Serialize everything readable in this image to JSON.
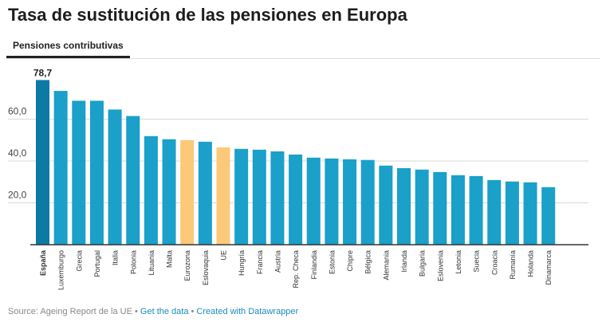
{
  "header": {
    "title": "Tasa de sustitución de las pensiones en Europa",
    "tab": "Pensiones contributivas"
  },
  "footer": {
    "source": "Source: Ageing Report de la UE",
    "sep": " • ",
    "get_data": "Get the data",
    "created": "Created with Datawrapper"
  },
  "colors": {
    "default": "#1aa0c9",
    "highlight_spain": "#0c7aa2",
    "aggregate": "#fcc978"
  },
  "chart_data": {
    "type": "bar",
    "title": "Tasa de sustitución de las pensiones en Europa",
    "categories": [
      "España",
      "Luxemburgo",
      "Grecia",
      "Portugal",
      "Italia",
      "Polonia",
      "Lituania",
      "Malta",
      "Eurozona",
      "Eslovaquia",
      "UE",
      "Hungría",
      "Francia",
      "Austria",
      "Rep. Checa",
      "Finlandia",
      "Estonia",
      "Chipre",
      "Bélgica",
      "Alemania",
      "Irlanda",
      "Bulgaria",
      "Eslovenia",
      "Letonia",
      "Suecia",
      "Croacia",
      "Rumanía",
      "Holanda",
      "Dinamarca"
    ],
    "values": [
      78.7,
      73.5,
      68.8,
      68.8,
      64.6,
      61.5,
      51.9,
      50.4,
      50.0,
      49.2,
      46.5,
      45.8,
      45.4,
      44.6,
      43.1,
      41.6,
      41.2,
      40.8,
      40.5,
      37.8,
      36.6,
      35.9,
      34.7,
      33.2,
      32.8,
      30.9,
      30.2,
      29.8,
      27.5
    ],
    "highlight": {
      "España": "highlight_spain",
      "Eurozona": "aggregate",
      "UE": "aggregate"
    },
    "data_labels": {
      "España": "78,7"
    },
    "yticks": [
      "20,0",
      "40,0",
      "60,0"
    ],
    "ytick_values": [
      20,
      40,
      60
    ],
    "ylim": [
      0,
      80
    ],
    "grid": true,
    "xlabel": "",
    "ylabel": ""
  }
}
